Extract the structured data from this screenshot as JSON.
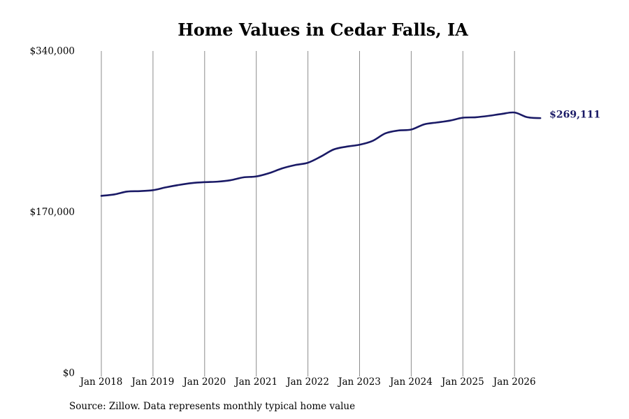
{
  "title": "Home Values in Cedar Falls, IA",
  "source_note": "Source: Zillow. Data represents monthly typical home value",
  "chart_data": {
    "type": "line",
    "title": "Home Values in Cedar Falls, IA",
    "xlabel": "",
    "ylabel": "",
    "ylim": [
      0,
      340000
    ],
    "yticks": [
      0,
      170000,
      340000
    ],
    "ytick_labels": [
      "$0",
      "$170,000",
      "$340,000"
    ],
    "xlim": [
      "2018-01",
      "2026-07"
    ],
    "xticks": [
      "2018-01",
      "2019-01",
      "2020-01",
      "2021-01",
      "2022-01",
      "2023-01",
      "2024-01",
      "2025-01",
      "2026-01"
    ],
    "xtick_labels": [
      "Jan 2018",
      "Jan 2019",
      "Jan 2020",
      "Jan 2021",
      "Jan 2022",
      "Jan 2023",
      "Jan 2024",
      "Jan 2025",
      "Jan 2026"
    ],
    "grid": "vertical",
    "legend": "none",
    "line_color": "#1a1a66",
    "grid_color": "#8c8c8c",
    "end_label": "$269,111",
    "series": [
      {
        "x": [
          "2018-01",
          "2018-04",
          "2018-07",
          "2018-10",
          "2019-01",
          "2019-04",
          "2019-07",
          "2019-10",
          "2020-01",
          "2020-04",
          "2020-07",
          "2020-10",
          "2021-01",
          "2021-04",
          "2021-07",
          "2021-10",
          "2022-01",
          "2022-04",
          "2022-07",
          "2022-10",
          "2023-01",
          "2023-04",
          "2023-07",
          "2023-10",
          "2024-01",
          "2024-04",
          "2024-07",
          "2024-10",
          "2025-01",
          "2025-04",
          "2025-07",
          "2025-10",
          "2026-01",
          "2026-04",
          "2026-07"
        ],
        "values": [
          187000,
          188500,
          191500,
          192000,
          193000,
          196000,
          198500,
          200500,
          201500,
          202000,
          203500,
          206500,
          207500,
          211000,
          216000,
          219500,
          222000,
          228500,
          236000,
          239000,
          241000,
          245000,
          253000,
          256000,
          257000,
          262500,
          264500,
          266500,
          269500,
          270000,
          271500,
          273500,
          275000,
          270000,
          269111
        ]
      }
    ]
  }
}
